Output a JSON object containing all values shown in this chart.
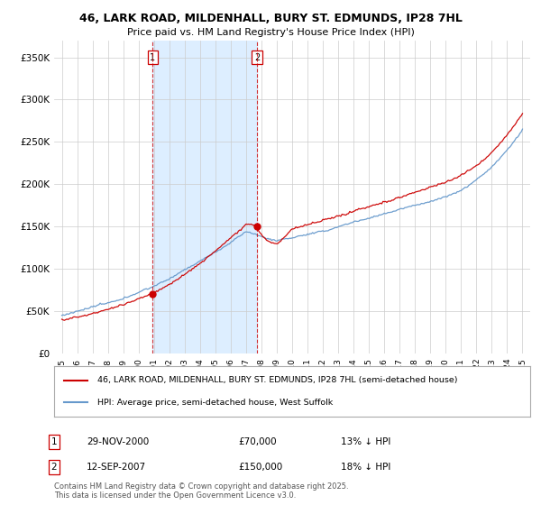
{
  "title": "46, LARK ROAD, MILDENHALL, BURY ST. EDMUNDS, IP28 7HL",
  "subtitle": "Price paid vs. HM Land Registry's House Price Index (HPI)",
  "ylabel_ticks": [
    "£0",
    "£50K",
    "£100K",
    "£150K",
    "£200K",
    "£250K",
    "£300K",
    "£350K"
  ],
  "ytick_values": [
    0,
    50000,
    100000,
    150000,
    200000,
    250000,
    300000,
    350000
  ],
  "ylim": [
    0,
    370000
  ],
  "legend_label_red": "46, LARK ROAD, MILDENHALL, BURY ST. EDMUNDS, IP28 7HL (semi-detached house)",
  "legend_label_blue": "HPI: Average price, semi-detached house, West Suffolk",
  "marker1_label": "1",
  "marker1_date": "29-NOV-2000",
  "marker1_price": "£70,000",
  "marker1_hpi": "13% ↓ HPI",
  "marker1_year": 2000.92,
  "marker1_value": 70000,
  "marker2_label": "2",
  "marker2_date": "12-SEP-2007",
  "marker2_price": "£150,000",
  "marker2_hpi": "18% ↓ HPI",
  "marker2_year": 2007.71,
  "marker2_value": 150000,
  "footer": "Contains HM Land Registry data © Crown copyright and database right 2025.\nThis data is licensed under the Open Government Licence v3.0.",
  "red_color": "#cc0000",
  "blue_color": "#6699cc",
  "shade_color": "#ddeeff",
  "marker_vline_color": "#cc0000",
  "background_color": "#ffffff",
  "title_fontsize": 9,
  "subtitle_fontsize": 8
}
